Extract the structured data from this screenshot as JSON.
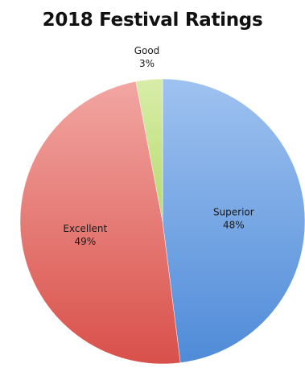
{
  "chart_data": {
    "type": "pie",
    "title": "2018 Festival Ratings",
    "slices": [
      {
        "label": "Superior",
        "percent_label": "48%",
        "value": 48,
        "color": "#9fc2f0",
        "color_dark": "#4f8bd8"
      },
      {
        "label": "Excellent",
        "percent_label": "49%",
        "value": 49,
        "color": "#f2a6a2",
        "color_dark": "#d9504a"
      },
      {
        "label": "Good",
        "percent_label": "3%",
        "value": 3,
        "color": "#d8eda8",
        "color_dark": "#b5db6f"
      }
    ]
  }
}
